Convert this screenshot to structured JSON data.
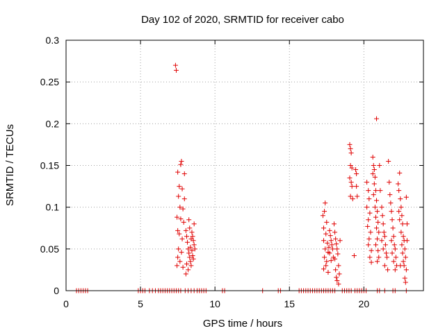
{
  "colors": {
    "series": "#e00000",
    "grid": "#a0a0a0",
    "axis": "#000000"
  },
  "chart_data": {
    "type": "scatter",
    "title": "Day 102 of 2020, SRMTID for receiver cabo",
    "xlabel": "GPS time / hours",
    "ylabel": "SRMTID / TECUs",
    "xlim": [
      0,
      24
    ],
    "ylim": [
      0,
      0.3
    ],
    "xticks": [
      0,
      5,
      10,
      15,
      20
    ],
    "xtick_labels": [
      "0",
      "5",
      "10",
      "15",
      "20"
    ],
    "yticks": [
      0,
      0.05,
      0.1,
      0.15,
      0.2,
      0.25,
      0.3
    ],
    "ytick_labels": [
      "0",
      "0.05",
      "0.1",
      "0.15",
      "0.2",
      "0.25",
      "0.3"
    ],
    "grid": true,
    "marker": "plus",
    "series": [
      {
        "name": "SRMTID",
        "points": [
          [
            7.35,
            0.27
          ],
          [
            7.4,
            0.264
          ],
          [
            7.5,
            0.142
          ],
          [
            7.7,
            0.151
          ],
          [
            7.75,
            0.155
          ],
          [
            7.6,
            0.125
          ],
          [
            7.8,
            0.122
          ],
          [
            7.55,
            0.113
          ],
          [
            7.65,
            0.1
          ],
          [
            7.85,
            0.098
          ],
          [
            7.45,
            0.088
          ],
          [
            7.7,
            0.086
          ],
          [
            7.9,
            0.082
          ],
          [
            7.5,
            0.072
          ],
          [
            7.6,
            0.068
          ],
          [
            7.8,
            0.062
          ],
          [
            7.55,
            0.05
          ],
          [
            7.75,
            0.046
          ],
          [
            7.5,
            0.04
          ],
          [
            7.65,
            0.035
          ],
          [
            7.45,
            0.03
          ],
          [
            7.85,
            0.028
          ],
          [
            7.95,
            0.14
          ],
          [
            7.95,
            0.11
          ],
          [
            8.05,
            0.072
          ],
          [
            8.1,
            0.065
          ],
          [
            8.15,
            0.058
          ],
          [
            8.2,
            0.05
          ],
          [
            8.25,
            0.045
          ],
          [
            8.3,
            0.04
          ],
          [
            8.35,
            0.035
          ],
          [
            8.4,
            0.03
          ],
          [
            8.2,
            0.025
          ],
          [
            8.05,
            0.02
          ],
          [
            8.3,
            0.075
          ],
          [
            8.45,
            0.07
          ],
          [
            8.5,
            0.065
          ],
          [
            8.55,
            0.06
          ],
          [
            8.6,
            0.055
          ],
          [
            8.35,
            0.052
          ],
          [
            8.45,
            0.048
          ],
          [
            8.5,
            0.042
          ],
          [
            8.55,
            0.038
          ],
          [
            8.6,
            0.08
          ],
          [
            8.25,
            0.085
          ],
          [
            8.4,
            0.062
          ],
          [
            8.65,
            0.05
          ],
          [
            8.1,
            0.032
          ],
          [
            17.25,
            0.09
          ],
          [
            17.4,
            0.105
          ],
          [
            17.35,
            0.095
          ],
          [
            17.3,
            0.075
          ],
          [
            17.5,
            0.082
          ],
          [
            17.45,
            0.068
          ],
          [
            17.3,
            0.06
          ],
          [
            17.55,
            0.057
          ],
          [
            17.4,
            0.05
          ],
          [
            17.6,
            0.046
          ],
          [
            17.35,
            0.04
          ],
          [
            17.5,
            0.035
          ],
          [
            17.45,
            0.03
          ],
          [
            17.3,
            0.026
          ],
          [
            17.6,
            0.022
          ],
          [
            17.7,
            0.072
          ],
          [
            17.75,
            0.066
          ],
          [
            17.8,
            0.06
          ],
          [
            17.85,
            0.055
          ],
          [
            17.9,
            0.05
          ],
          [
            17.7,
            0.045
          ],
          [
            17.95,
            0.04
          ],
          [
            17.8,
            0.036
          ],
          [
            17.65,
            0.052
          ],
          [
            18.0,
            0.08
          ],
          [
            18.05,
            0.07
          ],
          [
            18.1,
            0.062
          ],
          [
            18.15,
            0.056
          ],
          [
            18.2,
            0.05
          ],
          [
            18.25,
            0.044
          ],
          [
            18.05,
            0.038
          ],
          [
            18.3,
            0.03
          ],
          [
            18.35,
            0.02
          ],
          [
            18.2,
            0.012
          ],
          [
            18.3,
            0.008
          ],
          [
            18.4,
            0.06
          ],
          [
            18.1,
            0.025
          ],
          [
            18.15,
            0.016
          ],
          [
            19.05,
            0.175
          ],
          [
            19.1,
            0.17
          ],
          [
            19.15,
            0.165
          ],
          [
            19.1,
            0.15
          ],
          [
            19.2,
            0.147
          ],
          [
            19.05,
            0.135
          ],
          [
            19.15,
            0.13
          ],
          [
            19.2,
            0.125
          ],
          [
            19.1,
            0.113
          ],
          [
            19.25,
            0.11
          ],
          [
            19.45,
            0.145
          ],
          [
            19.5,
            0.14
          ],
          [
            19.5,
            0.125
          ],
          [
            19.55,
            0.113
          ],
          [
            19.35,
            0.042
          ],
          [
            20.2,
            0.13
          ],
          [
            20.3,
            0.12
          ],
          [
            20.35,
            0.11
          ],
          [
            20.2,
            0.1
          ],
          [
            20.4,
            0.093
          ],
          [
            20.3,
            0.085
          ],
          [
            20.25,
            0.077
          ],
          [
            20.45,
            0.07
          ],
          [
            20.35,
            0.062
          ],
          [
            20.3,
            0.055
          ],
          [
            20.5,
            0.048
          ],
          [
            20.4,
            0.04
          ],
          [
            20.5,
            0.034
          ],
          [
            20.6,
            0.16
          ],
          [
            20.65,
            0.15
          ],
          [
            20.7,
            0.145
          ],
          [
            20.6,
            0.14
          ],
          [
            20.75,
            0.136
          ],
          [
            20.7,
            0.128
          ],
          [
            20.8,
            0.12
          ],
          [
            20.65,
            0.115
          ],
          [
            20.85,
            0.108
          ],
          [
            20.75,
            0.1
          ],
          [
            20.9,
            0.095
          ],
          [
            20.8,
            0.088
          ],
          [
            20.95,
            0.082
          ],
          [
            20.85,
            0.075
          ],
          [
            21.0,
            0.07
          ],
          [
            20.9,
            0.062
          ],
          [
            20.8,
            0.055
          ],
          [
            20.95,
            0.048
          ],
          [
            21.0,
            0.04
          ],
          [
            20.9,
            0.035
          ],
          [
            20.85,
            0.206
          ],
          [
            21.05,
            0.15
          ],
          [
            21.1,
            0.12
          ],
          [
            21.2,
            0.1
          ],
          [
            21.25,
            0.09
          ],
          [
            21.3,
            0.08
          ],
          [
            21.35,
            0.07
          ],
          [
            21.4,
            0.065
          ],
          [
            21.2,
            0.06
          ],
          [
            21.45,
            0.055
          ],
          [
            21.3,
            0.05
          ],
          [
            21.5,
            0.045
          ],
          [
            21.55,
            0.04
          ],
          [
            21.4,
            0.03
          ],
          [
            21.6,
            0.025
          ],
          [
            21.65,
            0.155
          ],
          [
            21.7,
            0.13
          ],
          [
            21.75,
            0.115
          ],
          [
            21.8,
            0.105
          ],
          [
            21.85,
            0.095
          ],
          [
            21.9,
            0.085
          ],
          [
            21.95,
            0.075
          ],
          [
            22.0,
            0.065
          ],
          [
            21.85,
            0.06
          ],
          [
            22.05,
            0.055
          ],
          [
            22.1,
            0.05
          ],
          [
            21.9,
            0.045
          ],
          [
            22.15,
            0.04
          ],
          [
            22.0,
            0.035
          ],
          [
            22.2,
            0.03
          ],
          [
            22.1,
            0.025
          ],
          [
            22.3,
            0.128
          ],
          [
            22.35,
            0.12
          ],
          [
            22.4,
            0.141
          ],
          [
            22.45,
            0.11
          ],
          [
            22.5,
            0.1
          ],
          [
            22.55,
            0.09
          ],
          [
            22.4,
            0.085
          ],
          [
            22.6,
            0.08
          ],
          [
            22.5,
            0.07
          ],
          [
            22.65,
            0.065
          ],
          [
            22.7,
            0.06
          ],
          [
            22.55,
            0.055
          ],
          [
            22.75,
            0.05
          ],
          [
            22.6,
            0.045
          ],
          [
            22.8,
            0.04
          ],
          [
            22.65,
            0.035
          ],
          [
            22.7,
            0.03
          ],
          [
            22.85,
            0.025
          ],
          [
            22.75,
            0.015
          ],
          [
            22.8,
            0.01
          ],
          [
            22.85,
            0.112
          ],
          [
            22.9,
            0.08
          ],
          [
            22.9,
            0.06
          ],
          [
            22.35,
            0.095
          ],
          [
            22.45,
            0.03
          ],
          [
            0.7,
            0
          ],
          [
            0.85,
            0
          ],
          [
            1.0,
            0
          ],
          [
            1.15,
            0
          ],
          [
            1.3,
            0
          ],
          [
            1.45,
            0
          ],
          [
            4.85,
            0
          ],
          [
            5.0,
            0
          ],
          [
            5.15,
            0
          ],
          [
            5.3,
            0
          ],
          [
            5.6,
            0
          ],
          [
            5.8,
            0
          ],
          [
            6.0,
            0
          ],
          [
            6.2,
            0
          ],
          [
            6.35,
            0
          ],
          [
            6.5,
            0
          ],
          [
            6.65,
            0
          ],
          [
            6.8,
            0
          ],
          [
            6.95,
            0
          ],
          [
            7.1,
            0
          ],
          [
            7.25,
            0
          ],
          [
            7.4,
            0
          ],
          [
            7.55,
            0
          ],
          [
            7.7,
            0
          ],
          [
            8.0,
            0
          ],
          [
            8.2,
            0
          ],
          [
            8.4,
            0
          ],
          [
            8.6,
            0
          ],
          [
            8.8,
            0
          ],
          [
            8.95,
            0
          ],
          [
            9.1,
            0
          ],
          [
            9.25,
            0
          ],
          [
            9.4,
            0
          ],
          [
            10.5,
            0
          ],
          [
            10.65,
            0
          ],
          [
            13.2,
            0
          ],
          [
            14.25,
            0
          ],
          [
            14.4,
            0
          ],
          [
            15.65,
            0
          ],
          [
            15.8,
            0
          ],
          [
            15.95,
            0
          ],
          [
            16.1,
            0
          ],
          [
            16.25,
            0
          ],
          [
            16.4,
            0
          ],
          [
            16.55,
            0
          ],
          [
            16.7,
            0
          ],
          [
            16.85,
            0
          ],
          [
            17.0,
            0
          ],
          [
            17.15,
            0
          ],
          [
            17.3,
            0
          ],
          [
            17.45,
            0
          ],
          [
            17.6,
            0
          ],
          [
            17.75,
            0
          ],
          [
            17.9,
            0
          ],
          [
            18.05,
            0
          ],
          [
            18.55,
            0
          ],
          [
            18.7,
            0
          ],
          [
            18.85,
            0
          ],
          [
            19.0,
            0
          ],
          [
            19.15,
            0
          ],
          [
            19.4,
            0
          ],
          [
            19.55,
            0
          ],
          [
            19.7,
            0
          ],
          [
            19.85,
            0
          ],
          [
            20.0,
            0
          ],
          [
            20.15,
            0
          ],
          [
            20.9,
            0
          ],
          [
            21.05,
            0
          ],
          [
            21.4,
            0
          ],
          [
            21.95,
            0
          ],
          [
            22.1,
            0
          ],
          [
            22.85,
            0
          ]
        ]
      }
    ]
  }
}
